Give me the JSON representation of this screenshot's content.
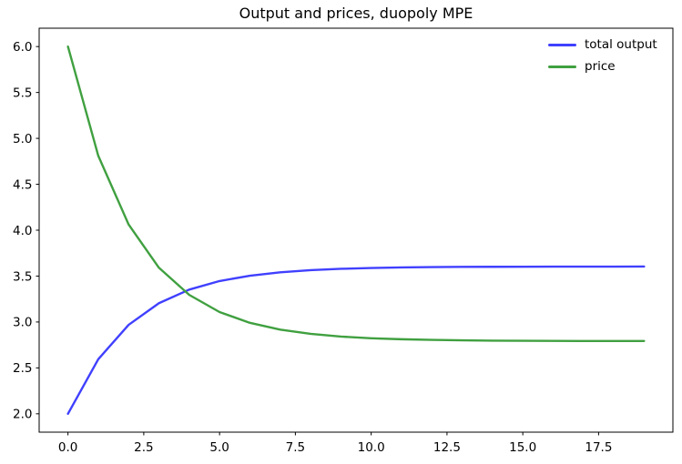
{
  "figure": {
    "background_color": "#ffffff",
    "spine_color": "#000000",
    "text_color": "#000000"
  },
  "chart_data": {
    "type": "line",
    "title": "Output and prices, duopoly MPE",
    "xlabel": "",
    "ylabel": "",
    "grid": false,
    "xlim": [
      -0.95,
      19.95
    ],
    "ylim": [
      1.8,
      6.2
    ],
    "xticks": [
      0.0,
      2.5,
      5.0,
      7.5,
      10.0,
      12.5,
      15.0,
      17.5
    ],
    "xtick_labels": [
      "0.0",
      "2.5",
      "5.0",
      "7.5",
      "10.0",
      "12.5",
      "15.0",
      "17.5"
    ],
    "yticks": [
      2.0,
      2.5,
      3.0,
      3.5,
      4.0,
      4.5,
      5.0,
      5.5,
      6.0
    ],
    "ytick_labels": [
      "2.0",
      "2.5",
      "3.0",
      "3.5",
      "4.0",
      "4.5",
      "5.0",
      "5.5",
      "6.0"
    ],
    "x": [
      0,
      1,
      2,
      3,
      4,
      5,
      6,
      7,
      8,
      9,
      10,
      11,
      12,
      13,
      14,
      15,
      16,
      17,
      18,
      19
    ],
    "series": [
      {
        "name": "total output",
        "color": "#4040FF",
        "line_width": 2.4,
        "values": [
          2.0,
          2.595,
          2.969,
          3.205,
          3.353,
          3.446,
          3.504,
          3.541,
          3.565,
          3.579,
          3.588,
          3.594,
          3.598,
          3.6,
          3.601,
          3.602,
          3.603,
          3.603,
          3.603,
          3.604
        ]
      },
      {
        "name": "price",
        "color": "#40A040",
        "line_width": 2.4,
        "values": [
          6.0,
          4.81,
          4.062,
          3.591,
          3.295,
          3.108,
          2.991,
          2.917,
          2.871,
          2.841,
          2.823,
          2.812,
          2.805,
          2.8,
          2.797,
          2.795,
          2.794,
          2.793,
          2.793,
          2.793
        ]
      }
    ],
    "legend": {
      "position": "upper right",
      "frame": false,
      "entries": [
        {
          "label": "total output",
          "color": "#4040FF"
        },
        {
          "label": "price",
          "color": "#40A040"
        }
      ]
    }
  }
}
